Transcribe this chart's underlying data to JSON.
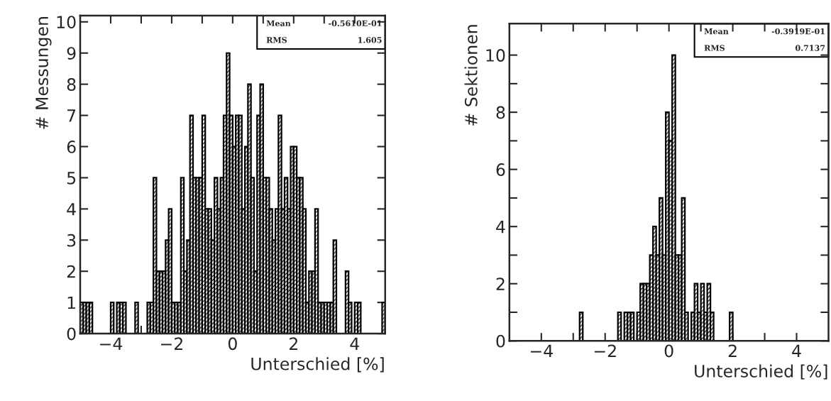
{
  "chart_data": [
    {
      "type": "histogram",
      "xlabel": "Unterschied [%]",
      "ylabel": "# Messungen",
      "annotations": [
        "Mean",
        "-0.5610E-01",
        "RMS",
        "1.605"
      ],
      "bins": [
        -5.0,
        -4.9,
        -4.8,
        -4.7,
        -4.6,
        -4.5,
        -4.4,
        -4.3,
        -4.2,
        -4.1,
        -4.0,
        -3.9,
        -3.8,
        -3.7,
        -3.6,
        -3.5,
        -3.4,
        -3.3,
        -3.2,
        -3.1,
        -3.0,
        -2.9,
        -2.8,
        -2.7,
        -2.6,
        -2.5,
        -2.4,
        -2.3,
        -2.2,
        -2.1,
        -2.0,
        -1.9,
        -1.8,
        -1.7,
        -1.6,
        -1.5,
        -1.4,
        -1.3,
        -1.2,
        -1.1,
        -1.0,
        -0.9,
        -0.8,
        -0.7,
        -0.6,
        -0.5,
        -0.4,
        -0.3,
        -0.2,
        -0.1,
        0.0,
        0.1,
        0.2,
        0.3,
        0.4,
        0.5,
        0.6,
        0.7,
        0.8,
        0.9,
        1.0,
        1.1,
        1.2,
        1.3,
        1.4,
        1.5,
        1.6,
        1.7,
        1.8,
        1.9,
        2.0,
        2.1,
        2.2,
        2.3,
        2.4,
        2.5,
        2.6,
        2.7,
        2.8,
        2.9,
        3.0,
        3.1,
        3.2,
        3.3,
        3.4,
        3.5,
        3.6,
        3.7,
        3.8,
        3.9,
        4.0,
        4.1,
        4.2,
        4.3,
        4.4,
        4.5,
        4.6,
        4.7,
        4.8,
        4.9,
        5.0
      ],
      "values": [
        1,
        1,
        1,
        1,
        0,
        0,
        0,
        0,
        0,
        0,
        1,
        0,
        1,
        1,
        1,
        0,
        0,
        0,
        1,
        0,
        0,
        0,
        1,
        1,
        5,
        2,
        2,
        2,
        3,
        4,
        1,
        1,
        1,
        5,
        2,
        3,
        7,
        5,
        5,
        5,
        7,
        4,
        4,
        3,
        5,
        4,
        5,
        7,
        9,
        7,
        6,
        7,
        7,
        4,
        6,
        8,
        5,
        2,
        7,
        8,
        5,
        5,
        4,
        3,
        4,
        7,
        4,
        5,
        4,
        6,
        6,
        5,
        5,
        4,
        1,
        2,
        2,
        4,
        1,
        1,
        1,
        1,
        1,
        3,
        0,
        0,
        0,
        2,
        1,
        0,
        1,
        1,
        0,
        0,
        0,
        0,
        0,
        0,
        0,
        1
      ],
      "color": "#000000",
      "xlim": [
        -5,
        5
      ],
      "ylim": [
        0,
        10.2
      ],
      "xticks": [
        -4,
        {
          "value": -3,
          "label": null
        },
        -2,
        {
          "value": -1,
          "label": null
        },
        0,
        {
          "value": 1,
          "label": null
        },
        2,
        {
          "value": 3,
          "label": null
        },
        4
      ],
      "yticks": [
        0,
        1,
        2,
        3,
        4,
        5,
        6,
        7,
        8,
        9,
        10
      ],
      "grid": false,
      "legend": false
    },
    {
      "type": "histogram",
      "xlabel": "Unterschied [%]",
      "ylabel": "# Sektionen",
      "annotations": [
        "Mean",
        "-0.3919E-01",
        "RMS",
        "0.7137"
      ],
      "bins": [
        -5.0,
        -4.9,
        -4.8,
        -4.7,
        -4.6,
        -4.5,
        -4.4,
        -4.3,
        -4.2,
        -4.1,
        -4.0,
        -3.9,
        -3.8,
        -3.7,
        -3.6,
        -3.5,
        -3.4,
        -3.3,
        -3.2,
        -3.1,
        -3.0,
        -2.9,
        -2.8,
        -2.7,
        -2.6,
        -2.5,
        -2.4,
        -2.3,
        -2.2,
        -2.1,
        -2.0,
        -1.9,
        -1.8,
        -1.7,
        -1.6,
        -1.5,
        -1.4,
        -1.3,
        -1.2,
        -1.1,
        -1.0,
        -0.9,
        -0.8,
        -0.7,
        -0.6,
        -0.5,
        -0.4,
        -0.3,
        -0.2,
        -0.1,
        0.0,
        0.1,
        0.2,
        0.3,
        0.4,
        0.5,
        0.6,
        0.7,
        0.8,
        0.9,
        1.0,
        1.1,
        1.2,
        1.3,
        1.4,
        1.5,
        1.6,
        1.7,
        1.8,
        1.9,
        2.0,
        2.1,
        2.2,
        2.3,
        2.4,
        2.5,
        2.6,
        2.7,
        2.8,
        2.9,
        3.0,
        3.1,
        3.2,
        3.3,
        3.4,
        3.5,
        3.6,
        3.7,
        3.8,
        3.9,
        4.0,
        4.1,
        4.2,
        4.3,
        4.4,
        4.5,
        4.6,
        4.7,
        4.8,
        4.9,
        5.0
      ],
      "values": [
        0,
        0,
        0,
        0,
        0,
        0,
        0,
        0,
        0,
        0,
        0,
        0,
        0,
        0,
        0,
        0,
        0,
        0,
        0,
        0,
        0,
        0,
        1,
        0,
        0,
        0,
        0,
        0,
        0,
        0,
        0,
        0,
        0,
        0,
        1,
        0,
        1,
        1,
        1,
        0,
        1,
        2,
        2,
        2,
        3,
        4,
        3,
        5,
        3,
        8,
        7,
        10,
        3,
        3,
        5,
        1,
        0,
        1,
        2,
        1,
        2,
        1,
        2,
        1,
        0,
        0,
        0,
        0,
        0,
        1,
        0,
        0,
        0,
        0,
        0,
        0,
        0,
        0,
        0,
        0,
        0,
        0,
        0,
        0,
        0,
        0,
        0,
        0,
        0,
        0,
        0,
        0,
        0,
        0,
        0,
        0,
        0,
        0,
        0,
        0
      ],
      "color": "#000000",
      "xlim": [
        -5,
        5
      ],
      "ylim": [
        0,
        11.1
      ],
      "xticks": [
        -4,
        {
          "value": -3,
          "label": null
        },
        -2,
        {
          "value": -1,
          "label": null
        },
        0,
        {
          "value": 1,
          "label": null
        },
        2,
        {
          "value": 3,
          "label": null
        },
        4
      ],
      "yticks": [
        0,
        {
          "value": 1,
          "label": null
        },
        2,
        {
          "value": 3,
          "label": null
        },
        4,
        {
          "value": 5,
          "label": null
        },
        6,
        {
          "value": 7,
          "label": null
        },
        8,
        {
          "value": 9,
          "label": null
        },
        10
      ],
      "grid": false,
      "legend": false
    }
  ]
}
